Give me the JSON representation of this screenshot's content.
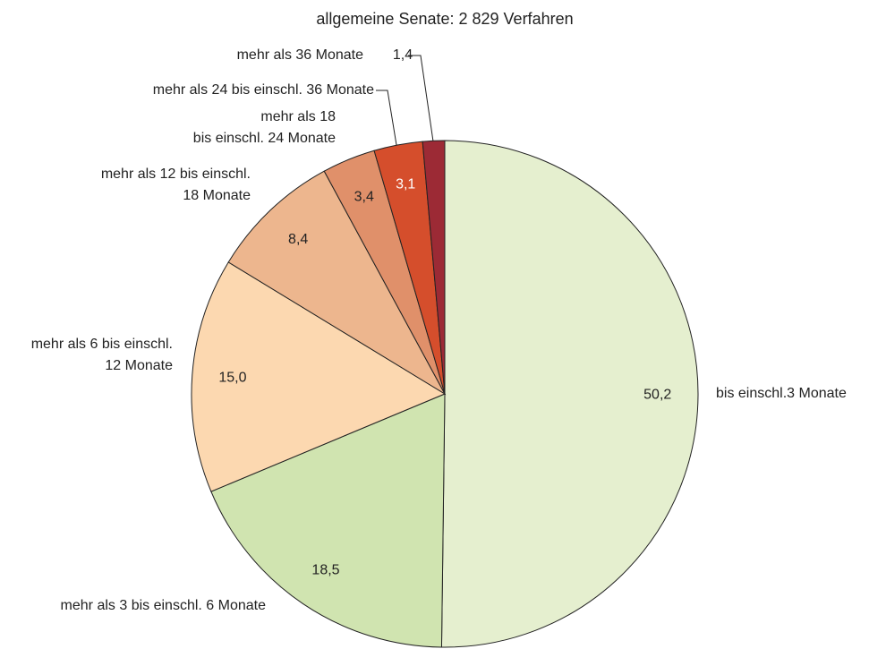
{
  "chart_data": {
    "type": "pie",
    "title": "allgemeine Senate: 2 829 Verfahren",
    "categories": [
      "bis einschl.3 Monate",
      "mehr als 3 bis einschl. 6 Monate",
      "mehr als 6 bis einschl.\n12 Monate",
      "mehr als 12 bis einschl.\n18 Monate",
      "mehr als 18\nbis einschl. 24 Monate",
      "mehr als 24 bis einschl. 36 Monate",
      "mehr als 36 Monate"
    ],
    "values": [
      50.2,
      18.5,
      15.0,
      8.4,
      3.4,
      3.1,
      1.4
    ],
    "value_labels": [
      "50,2",
      "18,5",
      "15,0",
      "8,4",
      "3,4",
      "3,1",
      "1,4"
    ],
    "colors": [
      "#e5efcf",
      "#d0e4b0",
      "#fcd8b0",
      "#edb68e",
      "#e0906a",
      "#d54e2c",
      "#9c2a35"
    ]
  }
}
